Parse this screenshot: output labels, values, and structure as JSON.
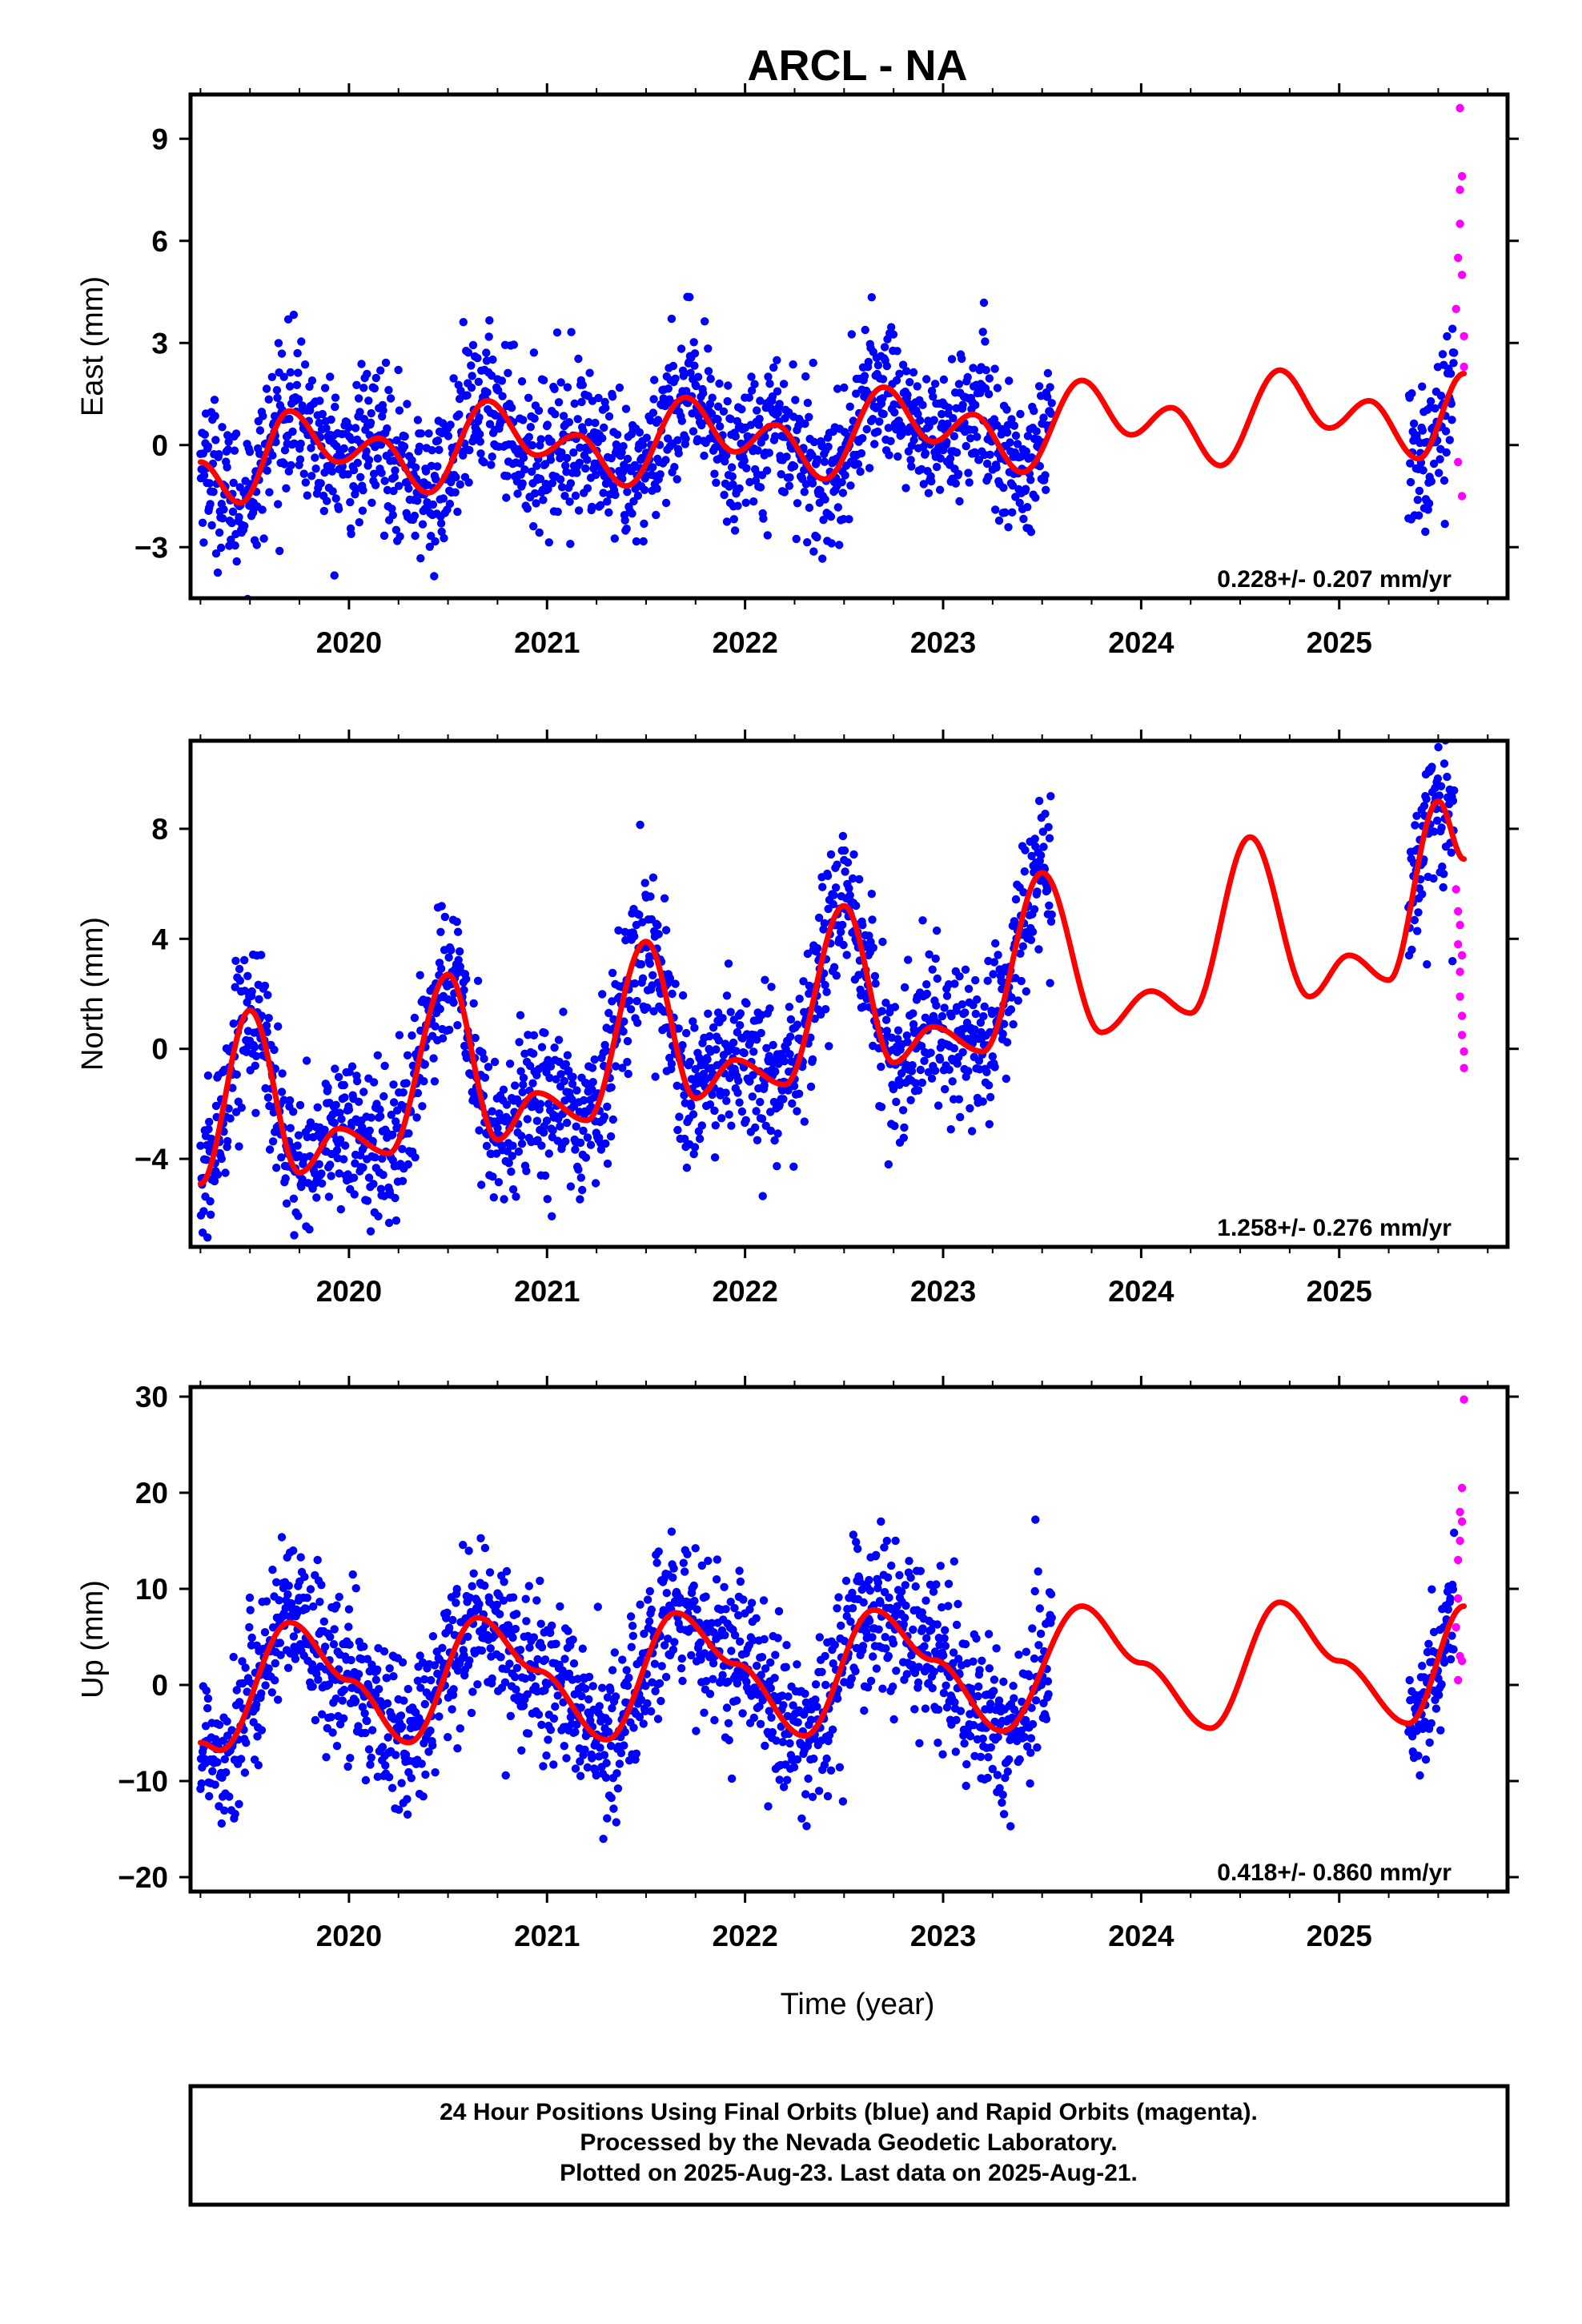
{
  "title": "ARCL - NA",
  "xlabel": "Time (year)",
  "colors": {
    "final": "#0000ff",
    "rapid": "#ff00ff",
    "model": "#ff0000"
  },
  "footer": {
    "line1": "24 Hour Positions Using Final Orbits (blue) and Rapid Orbits (magenta).",
    "line2": "Processed by the Nevada Geodetic Laboratory.",
    "line3": "Plotted on 2025-Aug-23. Last data on 2025-Aug-21."
  },
  "chart_data": [
    {
      "type": "scatter",
      "component": "east",
      "ylabel": "East (mm)",
      "xlim": [
        2019.2,
        2025.85
      ],
      "ylim": [
        -4.5,
        10.3
      ],
      "xticks": [
        2020,
        2021,
        2022,
        2023,
        2024,
        2025
      ],
      "yticks": [
        -3,
        0,
        3,
        6,
        9
      ],
      "rate": "0.228+/- 0.207 mm/yr",
      "final_span": [
        [
          2019.25,
          2023.55
        ],
        [
          2025.35,
          2025.58
        ]
      ],
      "final_noise": 1.1,
      "rapid_points": [
        [
          2025.59,
          4.0
        ],
        [
          2025.6,
          5.5
        ],
        [
          2025.61,
          6.5
        ],
        [
          2025.61,
          9.9
        ],
        [
          2025.62,
          5.0
        ],
        [
          2025.62,
          7.9
        ],
        [
          2025.63,
          2.3
        ],
        [
          2025.63,
          3.2
        ],
        [
          2025.6,
          -0.5
        ],
        [
          2025.62,
          -1.5
        ],
        [
          2025.61,
          7.5
        ]
      ],
      "model": [
        [
          2019.25,
          -0.5
        ],
        [
          2019.45,
          -1.7
        ],
        [
          2019.7,
          1.0
        ],
        [
          2019.95,
          -0.5
        ],
        [
          2020.15,
          0.2
        ],
        [
          2020.4,
          -1.4
        ],
        [
          2020.7,
          1.3
        ],
        [
          2020.95,
          -0.3
        ],
        [
          2021.15,
          0.3
        ],
        [
          2021.4,
          -1.2
        ],
        [
          2021.7,
          1.4
        ],
        [
          2021.95,
          -0.2
        ],
        [
          2022.15,
          0.6
        ],
        [
          2022.4,
          -1.0
        ],
        [
          2022.7,
          1.7
        ],
        [
          2022.95,
          0.1
        ],
        [
          2023.15,
          0.9
        ],
        [
          2023.4,
          -0.8
        ],
        [
          2023.7,
          1.9
        ],
        [
          2023.95,
          0.3
        ],
        [
          2024.15,
          1.1
        ],
        [
          2024.4,
          -0.6
        ],
        [
          2024.7,
          2.2
        ],
        [
          2024.95,
          0.5
        ],
        [
          2025.15,
          1.3
        ],
        [
          2025.4,
          -0.4
        ],
        [
          2025.63,
          2.1
        ]
      ]
    },
    {
      "type": "scatter",
      "component": "north",
      "ylabel": "North (mm)",
      "xlim": [
        2019.2,
        2025.85
      ],
      "ylim": [
        -7.2,
        11.2
      ],
      "xticks": [
        2020,
        2021,
        2022,
        2023,
        2024,
        2025
      ],
      "yticks": [
        -4,
        0,
        4,
        8
      ],
      "rate": "1.258+/- 0.276 mm/yr",
      "final_span": [
        [
          2019.25,
          2023.55
        ],
        [
          2025.35,
          2025.58
        ]
      ],
      "final_noise": 1.4,
      "rapid_points": [
        [
          2025.59,
          5.8
        ],
        [
          2025.6,
          5.0
        ],
        [
          2025.6,
          3.8
        ],
        [
          2025.61,
          2.8
        ],
        [
          2025.61,
          1.9
        ],
        [
          2025.62,
          1.2
        ],
        [
          2025.62,
          0.5
        ],
        [
          2025.63,
          -0.1
        ],
        [
          2025.63,
          -0.7
        ],
        [
          2025.61,
          4.5
        ],
        [
          2025.62,
          3.4
        ]
      ],
      "model": [
        [
          2019.25,
          -4.9
        ],
        [
          2019.5,
          1.4
        ],
        [
          2019.75,
          -4.5
        ],
        [
          2019.95,
          -2.9
        ],
        [
          2020.2,
          -3.8
        ],
        [
          2020.5,
          2.7
        ],
        [
          2020.75,
          -3.3
        ],
        [
          2020.95,
          -1.6
        ],
        [
          2021.2,
          -2.6
        ],
        [
          2021.5,
          3.9
        ],
        [
          2021.75,
          -1.8
        ],
        [
          2021.95,
          -0.4
        ],
        [
          2022.2,
          -1.3
        ],
        [
          2022.5,
          5.2
        ],
        [
          2022.75,
          -0.5
        ],
        [
          2022.95,
          0.8
        ],
        [
          2023.2,
          -0.1
        ],
        [
          2023.5,
          6.4
        ],
        [
          2023.8,
          0.6
        ],
        [
          2024.05,
          2.1
        ],
        [
          2024.25,
          1.3
        ],
        [
          2024.55,
          7.7
        ],
        [
          2024.85,
          1.9
        ],
        [
          2025.05,
          3.4
        ],
        [
          2025.25,
          2.5
        ],
        [
          2025.5,
          9.0
        ],
        [
          2025.63,
          6.9
        ]
      ]
    },
    {
      "type": "scatter",
      "component": "up",
      "ylabel": "Up (mm)",
      "xlim": [
        2019.2,
        2025.85
      ],
      "ylim": [
        -21.5,
        31.0
      ],
      "xticks": [
        2020,
        2021,
        2022,
        2023,
        2024,
        2025
      ],
      "yticks": [
        -20,
        -10,
        0,
        10,
        20,
        30
      ],
      "rate": "0.418+/- 0.860 mm/yr",
      "final_span": [
        [
          2019.25,
          2023.55
        ],
        [
          2025.35,
          2025.58
        ]
      ],
      "final_noise": 4.2,
      "rapid_points": [
        [
          2025.59,
          6.0
        ],
        [
          2025.6,
          9.0
        ],
        [
          2025.6,
          13.0
        ],
        [
          2025.61,
          15.0
        ],
        [
          2025.61,
          18.0
        ],
        [
          2025.62,
          20.5
        ],
        [
          2025.63,
          29.7
        ],
        [
          2025.62,
          2.5
        ],
        [
          2025.6,
          0.5
        ],
        [
          2025.61,
          3.0
        ],
        [
          2025.62,
          17.0
        ]
      ],
      "model": [
        [
          2019.25,
          -6.0
        ],
        [
          2019.35,
          -6.8
        ],
        [
          2019.7,
          6.5
        ],
        [
          2020.0,
          0.5
        ],
        [
          2020.3,
          -6.0
        ],
        [
          2020.65,
          7.0
        ],
        [
          2020.95,
          1.5
        ],
        [
          2021.3,
          -5.7
        ],
        [
          2021.65,
          7.5
        ],
        [
          2021.95,
          2.2
        ],
        [
          2022.3,
          -5.3
        ],
        [
          2022.65,
          7.8
        ],
        [
          2022.95,
          2.6
        ],
        [
          2023.3,
          -4.8
        ],
        [
          2023.7,
          8.2
        ],
        [
          2024.0,
          2.3
        ],
        [
          2024.35,
          -4.5
        ],
        [
          2024.7,
          8.6
        ],
        [
          2025.0,
          2.5
        ],
        [
          2025.35,
          -4.0
        ],
        [
          2025.63,
          8.2
        ]
      ]
    }
  ]
}
